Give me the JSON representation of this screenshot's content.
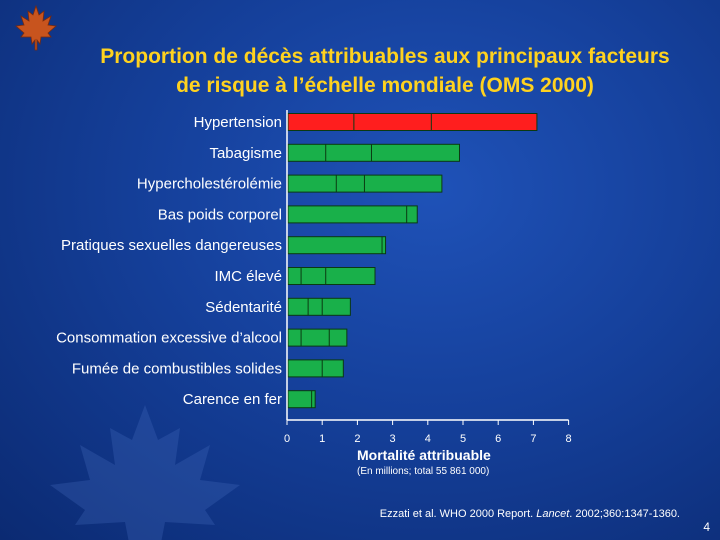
{
  "slide": {
    "title_line1": "Proportion de décès attribuables aux principaux facteurs",
    "title_line2": "de risque à l’échelle mondiale (OMS 2000)",
    "source_prefix": "Ezzati et al. WHO 2000 Report. ",
    "source_journal": "Lancet",
    "source_suffix": ". 2002;360:1347-1360.",
    "page_number": "4"
  },
  "chart_data": {
    "type": "bar",
    "orientation": "horizontal",
    "categories": [
      "Hypertension",
      "Tabagisme",
      "Hypercholestérolémie",
      "Bas poids corporel",
      "Pratiques sexuelles dangereuses",
      "IMC élevé",
      "Sédentarité",
      "Consommation excessive d’alcool",
      "Fumée de combustibles solides",
      "Carence en fer"
    ],
    "values": [
      7.1,
      4.9,
      4.4,
      3.7,
      2.8,
      2.5,
      1.8,
      1.7,
      1.6,
      0.8
    ],
    "segment_boundaries": [
      [
        1.9,
        4.1
      ],
      [
        1.1,
        2.4
      ],
      [
        1.4,
        2.2
      ],
      [
        3.4
      ],
      [
        2.7
      ],
      [
        0.4,
        1.1
      ],
      [
        0.6,
        1.0
      ],
      [
        0.4,
        1.2
      ],
      [
        1.0
      ],
      [
        0.7
      ]
    ],
    "bar_colors": [
      "#ff1e1e",
      "#19b04a",
      "#19b04a",
      "#19b04a",
      "#19b04a",
      "#19b04a",
      "#19b04a",
      "#19b04a",
      "#19b04a",
      "#19b04a"
    ],
    "x_ticks": [
      "0",
      "1",
      "2",
      "3",
      "4",
      "5",
      "6",
      "7",
      "8"
    ],
    "xlim": [
      0,
      8
    ],
    "xlabel": "Mortalité attribuable",
    "xlabel_note": "(En millions; total 55 861 000)",
    "grid": false
  }
}
